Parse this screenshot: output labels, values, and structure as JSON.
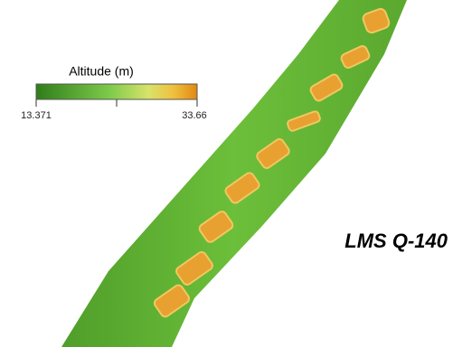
{
  "legend": {
    "title": "Altitude (m)",
    "min": 13.371,
    "max": 33.66
  },
  "annotation": "LMS Q-140"
}
